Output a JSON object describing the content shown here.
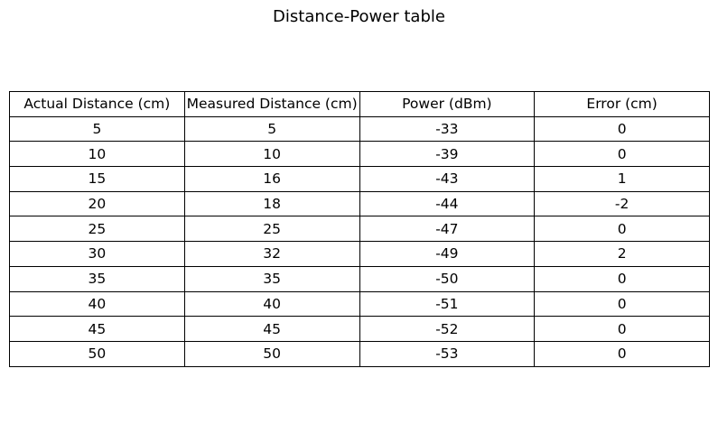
{
  "chart_data": {
    "type": "table",
    "title": "Distance-Power table",
    "columns": [
      "Actual Distance (cm)",
      "Measured Distance (cm)",
      "Power (dBm)",
      "Error (cm)"
    ],
    "rows": [
      [
        "5",
        "5",
        "-33",
        "0"
      ],
      [
        "10",
        "10",
        "-39",
        "0"
      ],
      [
        "15",
        "16",
        "-43",
        "1"
      ],
      [
        "20",
        "18",
        "-44",
        "-2"
      ],
      [
        "25",
        "25",
        "-47",
        "0"
      ],
      [
        "30",
        "32",
        "-49",
        "2"
      ],
      [
        "35",
        "35",
        "-50",
        "0"
      ],
      [
        "40",
        "40",
        "-51",
        "0"
      ],
      [
        "45",
        "45",
        "-52",
        "0"
      ],
      [
        "50",
        "50",
        "-53",
        "0"
      ]
    ]
  }
}
